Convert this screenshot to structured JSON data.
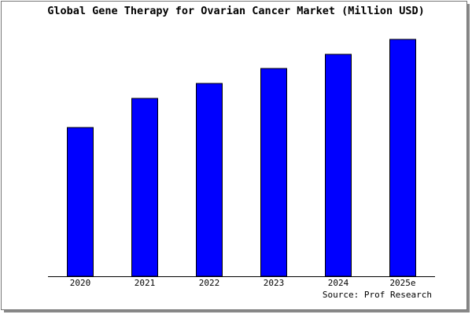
{
  "chart_data": {
    "type": "bar",
    "title": "Global Gene Therapy for Ovarian Cancer Market (Million USD)",
    "categories": [
      "2020",
      "2021",
      "2022",
      "2023",
      "2024",
      "2025e"
    ],
    "values": [
      189,
      226,
      245,
      264,
      282,
      301
    ],
    "color": "#0000ff",
    "ylim": [
      0,
      305
    ],
    "source": "Source: Prof Research"
  }
}
